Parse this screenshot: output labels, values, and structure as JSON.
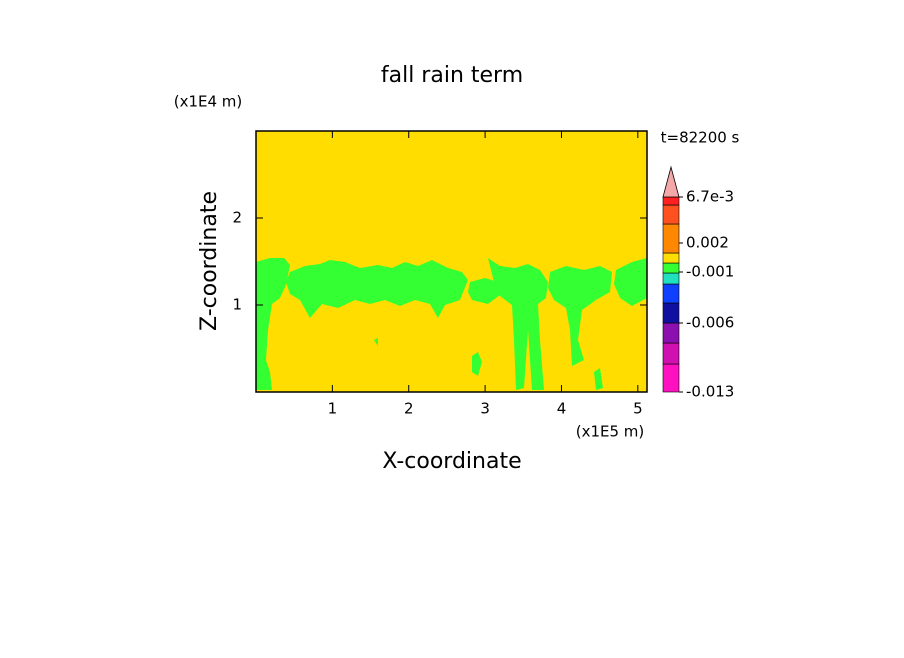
{
  "chart_data": {
    "type": "contour",
    "title": "fall rain term",
    "x_label": "X-coordinate",
    "y_label": "Z-coordinate",
    "x_unit": "(x1E5 m)",
    "y_unit": "(x1E4 m)",
    "time_label": "t=82200 s",
    "xlim": [
      0,
      5.12
    ],
    "ylim": [
      0,
      3
    ],
    "xticks": [
      1,
      2,
      3,
      4,
      5
    ],
    "yticks": [
      1,
      2
    ],
    "background_color": "#ffdd00",
    "contour_color": "#33ff33",
    "colorbar": {
      "colors": [
        "#ff10c0",
        "#d010b0",
        "#8c10b0",
        "#1010a0",
        "#1040ff",
        "#20e0c0",
        "#33ff33",
        "#ffdd00",
        "#ff8800",
        "#ff5020",
        "#ff2020",
        "#f4a8a8"
      ],
      "ticks": [
        {
          "value": -0.013,
          "label": "-0.013"
        },
        -0.006,
        -0.001,
        0.002,
        {
          "value": 0.0067,
          "label": "6.7e-3"
        }
      ]
    }
  }
}
